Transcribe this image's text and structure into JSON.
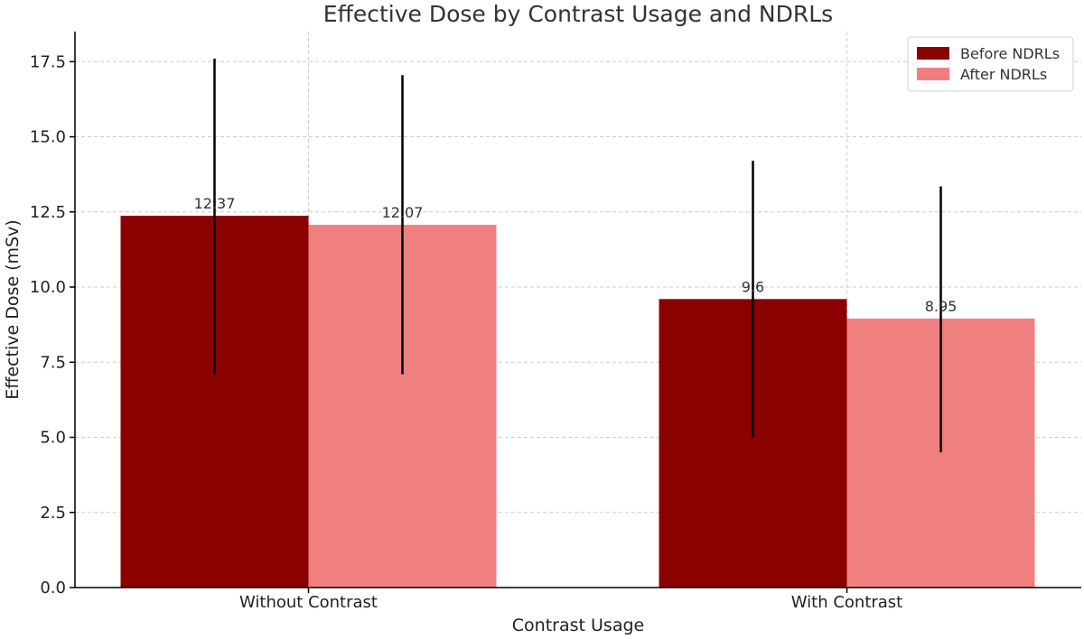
{
  "chart_data": {
    "type": "bar",
    "title": "Effective Dose by Contrast Usage and NDRLs",
    "xlabel": "Contrast Usage",
    "ylabel": "Effective Dose (mSv)",
    "categories": [
      "Without Contrast",
      "With Contrast"
    ],
    "series": [
      {
        "name": "Before NDRLs",
        "color": "#8b0000",
        "values": [
          12.37,
          9.6
        ],
        "labels": [
          "12.37",
          "9.6"
        ],
        "error_low": [
          7.1,
          5.0
        ],
        "error_high": [
          17.6,
          14.2
        ]
      },
      {
        "name": "After NDRLs",
        "color": "#f08080",
        "values": [
          12.07,
          8.95
        ],
        "labels": [
          "12.07",
          "8.95"
        ],
        "error_low": [
          7.1,
          4.5
        ],
        "error_high": [
          17.05,
          13.35
        ]
      }
    ],
    "ylim": [
      0,
      18.5
    ],
    "yticks": [
      0.0,
      2.5,
      5.0,
      7.5,
      10.0,
      12.5,
      15.0,
      17.5
    ],
    "ytick_labels": [
      "0.0",
      "2.5",
      "5.0",
      "7.5",
      "10.0",
      "12.5",
      "15.0",
      "17.5"
    ],
    "grid": true,
    "legend_position": "top-right"
  }
}
